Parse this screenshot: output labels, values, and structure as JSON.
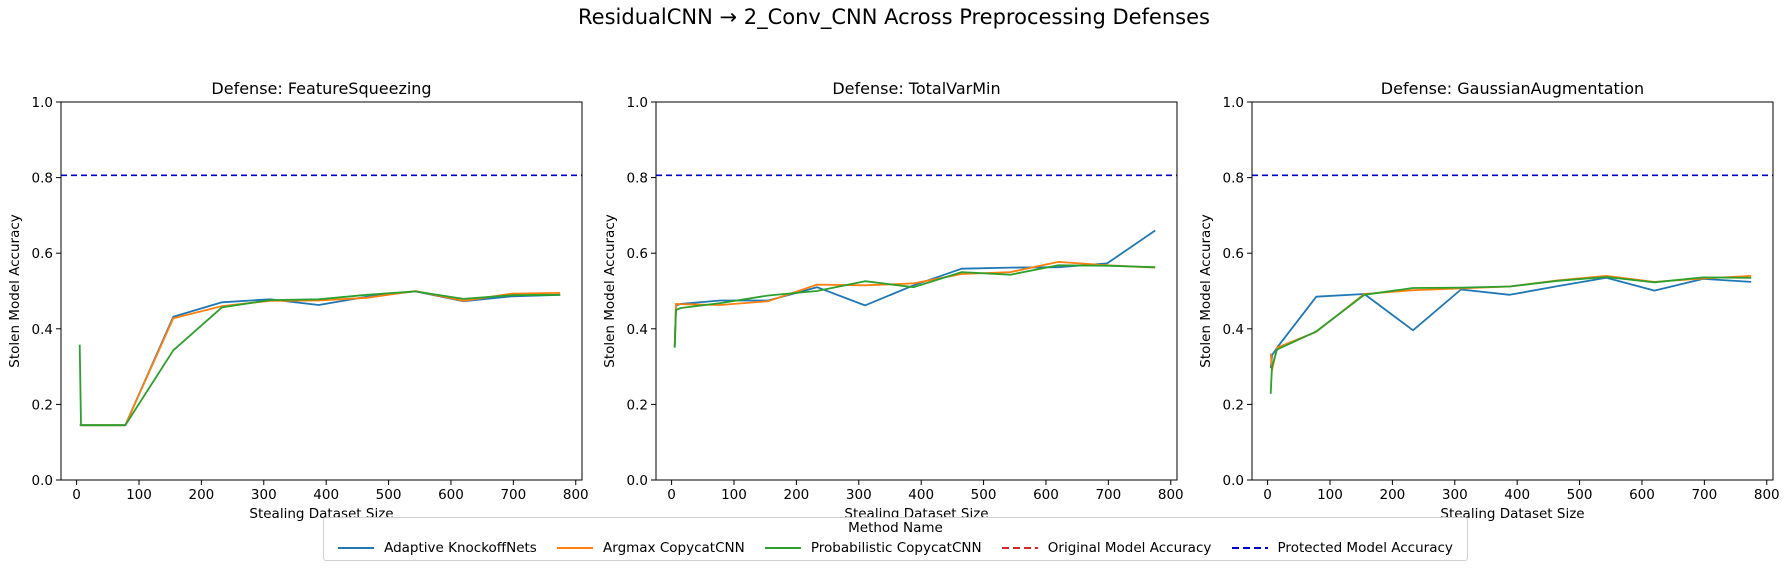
{
  "title": "ResidualCNN → 2_Conv_CNN Across Preprocessing Defenses",
  "legend": {
    "title": "Method Name",
    "entries": [
      {
        "label": "Adaptive KnockoffNets",
        "color": "#1f77b4",
        "dash": false
      },
      {
        "label": "Argmax CopycatCNN",
        "color": "#ff7f0e",
        "dash": false
      },
      {
        "label": "Probabilistic CopycatCNN",
        "color": "#2ca02c",
        "dash": false
      },
      {
        "label": "Original Model Accuracy",
        "color": "#d62728",
        "dash": true
      },
      {
        "label": "Protected Model Accuracy",
        "color": "#0000cc",
        "dash": true
      }
    ]
  },
  "chart_data": [
    {
      "type": "line",
      "title": "Defense: FeatureSqueezing",
      "xlabel": "Stealing Dataset Size",
      "ylabel": "Stolen Model Accuracy",
      "xlim": [
        -25,
        810
      ],
      "ylim": [
        0,
        1
      ],
      "xticks": [
        0,
        100,
        200,
        300,
        400,
        500,
        600,
        700,
        800
      ],
      "yticks": [
        0.0,
        0.2,
        0.4,
        0.6,
        0.8,
        1.0
      ],
      "protected_accuracy": 0.806,
      "series": [
        {
          "name": "Adaptive KnockoffNets",
          "color": "#1f77b4",
          "x": [
            5,
            7,
            78,
            155,
            233,
            310,
            388,
            465,
            543,
            620,
            698,
            775
          ],
          "y": [
            0.145,
            0.145,
            0.145,
            0.432,
            0.47,
            0.478,
            0.463,
            0.485,
            0.499,
            0.473,
            0.486,
            0.49
          ]
        },
        {
          "name": "Argmax CopycatCNN",
          "color": "#ff7f0e",
          "x": [
            5,
            7,
            78,
            155,
            233,
            310,
            388,
            465,
            543,
            620,
            698,
            775
          ],
          "y": [
            0.145,
            0.145,
            0.145,
            0.428,
            0.46,
            0.474,
            0.475,
            0.482,
            0.5,
            0.474,
            0.493,
            0.495
          ]
        },
        {
          "name": "Probabilistic CopycatCNN",
          "color": "#2ca02c",
          "x": [
            5,
            7,
            78,
            155,
            233,
            310,
            388,
            465,
            543,
            620,
            698,
            775
          ],
          "y": [
            0.358,
            0.145,
            0.145,
            0.343,
            0.457,
            0.476,
            0.478,
            0.49,
            0.499,
            0.479,
            0.489,
            0.49
          ]
        }
      ]
    },
    {
      "type": "line",
      "title": "Defense: TotalVarMin",
      "xlabel": "Stealing Dataset Size",
      "ylabel": "Stolen Model Accuracy",
      "xlim": [
        -25,
        810
      ],
      "ylim": [
        0,
        1
      ],
      "xticks": [
        0,
        100,
        200,
        300,
        400,
        500,
        600,
        700,
        800
      ],
      "yticks": [
        0.0,
        0.2,
        0.4,
        0.6,
        0.8,
        1.0
      ],
      "protected_accuracy": 0.806,
      "series": [
        {
          "name": "Adaptive KnockoffNets",
          "color": "#1f77b4",
          "x": [
            5,
            7,
            15,
            78,
            155,
            233,
            310,
            388,
            465,
            543,
            620,
            698,
            775
          ],
          "y": [
            0.352,
            0.462,
            0.466,
            0.475,
            0.475,
            0.51,
            0.462,
            0.515,
            0.559,
            0.562,
            0.563,
            0.573,
            0.66
          ]
        },
        {
          "name": "Argmax CopycatCNN",
          "color": "#ff7f0e",
          "x": [
            5,
            7,
            15,
            78,
            155,
            233,
            310,
            388,
            465,
            543,
            620,
            698,
            775
          ],
          "y": [
            0.355,
            0.466,
            0.465,
            0.463,
            0.473,
            0.517,
            0.515,
            0.52,
            0.545,
            0.55,
            0.577,
            0.568,
            0.562
          ]
        },
        {
          "name": "Probabilistic CopycatCNN",
          "color": "#2ca02c",
          "x": [
            5,
            7,
            15,
            78,
            155,
            233,
            310,
            388,
            465,
            543,
            620,
            698,
            775
          ],
          "y": [
            0.35,
            0.45,
            0.455,
            0.468,
            0.488,
            0.5,
            0.526,
            0.51,
            0.55,
            0.543,
            0.568,
            0.567,
            0.563
          ]
        }
      ]
    },
    {
      "type": "line",
      "title": "Defense: GaussianAugmentation",
      "xlabel": "Stealing Dataset Size",
      "ylabel": "Stolen Model Accuracy",
      "xlim": [
        -25,
        810
      ],
      "ylim": [
        0,
        1
      ],
      "xticks": [
        0,
        100,
        200,
        300,
        400,
        500,
        600,
        700,
        800
      ],
      "yticks": [
        0.0,
        0.2,
        0.4,
        0.6,
        0.8,
        1.0
      ],
      "protected_accuracy": 0.806,
      "series": [
        {
          "name": "Adaptive KnockoffNets",
          "color": "#1f77b4",
          "x": [
            5,
            7,
            15,
            78,
            155,
            233,
            310,
            388,
            465,
            543,
            620,
            698,
            775
          ],
          "y": [
            0.296,
            0.33,
            0.35,
            0.485,
            0.492,
            0.396,
            0.504,
            0.49,
            0.513,
            0.535,
            0.501,
            0.532,
            0.524
          ]
        },
        {
          "name": "Argmax CopycatCNN",
          "color": "#ff7f0e",
          "x": [
            5,
            7,
            15,
            78,
            155,
            233,
            310,
            388,
            465,
            543,
            620,
            698,
            775
          ],
          "y": [
            0.335,
            0.29,
            0.35,
            0.392,
            0.492,
            0.502,
            0.507,
            0.512,
            0.528,
            0.54,
            0.524,
            0.533,
            0.54
          ]
        },
        {
          "name": "Probabilistic CopycatCNN",
          "color": "#2ca02c",
          "x": [
            5,
            7,
            15,
            78,
            155,
            233,
            310,
            388,
            465,
            543,
            620,
            698,
            775
          ],
          "y": [
            0.228,
            0.3,
            0.345,
            0.393,
            0.49,
            0.508,
            0.509,
            0.512,
            0.527,
            0.537,
            0.523,
            0.536,
            0.535
          ]
        }
      ]
    }
  ]
}
